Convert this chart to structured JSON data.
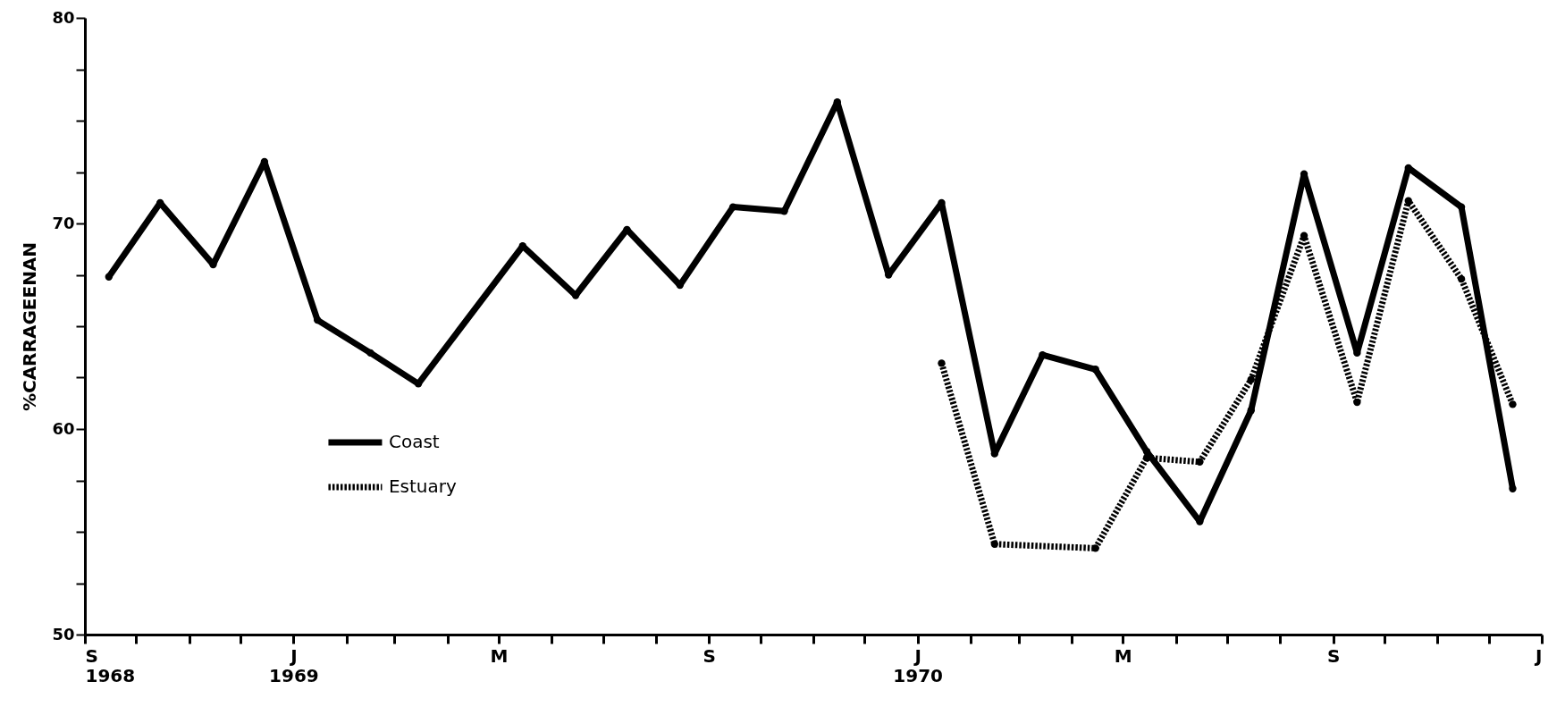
{
  "chart_data": {
    "type": "line",
    "ylabel": "%CARRAGEENAN",
    "series": [
      {
        "name": "Coast",
        "color": "#000000",
        "line_style": "solid",
        "x": [
          "1968-09-15",
          "1968-10-15",
          "1968-11-15",
          "1968-12-15",
          "1969-01-15",
          "1969-02-15",
          "1969-03-15",
          "1969-05-15",
          "1969-06-15",
          "1969-07-15",
          "1969-08-15",
          "1969-09-15",
          "1969-10-15",
          "1969-11-15",
          "1969-12-15",
          "1970-01-15",
          "1970-02-15",
          "1970-03-15",
          "1970-04-15",
          "1970-05-15",
          "1970-06-15",
          "1970-07-15",
          "1970-08-15",
          "1970-09-15",
          "1970-10-15",
          "1970-11-15",
          "1970-12-15"
        ],
        "values": [
          67.4,
          71.0,
          68.0,
          73.0,
          65.3,
          63.7,
          62.2,
          68.9,
          66.5,
          69.7,
          67.0,
          70.8,
          70.6,
          75.9,
          67.5,
          71.0,
          58.8,
          63.6,
          62.9,
          58.9,
          55.5,
          60.9,
          72.4,
          63.7,
          72.7,
          70.8,
          57.1
        ]
      },
      {
        "name": "Estuary",
        "color": "#000000",
        "line_style": "dotted",
        "x": [
          "1970-01-15",
          "1970-02-15",
          "1970-04-15",
          "1970-05-15",
          "1970-06-15",
          "1970-07-15",
          "1970-08-15",
          "1970-09-15",
          "1970-10-15",
          "1970-11-15",
          "1970-12-15"
        ],
        "values": [
          63.2,
          54.4,
          54.2,
          58.6,
          58.4,
          62.4,
          69.4,
          61.3,
          71.1,
          67.3,
          61.2
        ]
      }
    ],
    "xlim": [
      "1968-09-01",
      "1971-01-01"
    ],
    "xticks": [
      {
        "value": "1968-09-01",
        "label": "S\n1968"
      },
      {
        "value": "1968-10-01",
        "label": null
      },
      {
        "value": "1968-11-01",
        "label": null
      },
      {
        "value": "1968-12-01",
        "label": null
      },
      {
        "value": "1969-01-01",
        "label": "J\n1969"
      },
      {
        "value": "1969-02-01",
        "label": null
      },
      {
        "value": "1969-03-01",
        "label": null
      },
      {
        "value": "1969-04-01",
        "label": null
      },
      {
        "value": "1969-05-01",
        "label": "M"
      },
      {
        "value": "1969-06-01",
        "label": null
      },
      {
        "value": "1969-07-01",
        "label": null
      },
      {
        "value": "1969-08-01",
        "label": null
      },
      {
        "value": "1969-09-01",
        "label": "S"
      },
      {
        "value": "1969-10-01",
        "label": null
      },
      {
        "value": "1969-11-01",
        "label": null
      },
      {
        "value": "1969-12-01",
        "label": null
      },
      {
        "value": "1970-01-01",
        "label": "J\n1970"
      },
      {
        "value": "1970-02-01",
        "label": null
      },
      {
        "value": "1970-03-01",
        "label": null
      },
      {
        "value": "1970-04-01",
        "label": null
      },
      {
        "value": "1970-05-01",
        "label": "M"
      },
      {
        "value": "1970-06-01",
        "label": null
      },
      {
        "value": "1970-07-01",
        "label": null
      },
      {
        "value": "1970-08-01",
        "label": null
      },
      {
        "value": "1970-09-01",
        "label": "S"
      },
      {
        "value": "1970-10-01",
        "label": null
      },
      {
        "value": "1970-11-01",
        "label": null
      },
      {
        "value": "1970-12-01",
        "label": null
      },
      {
        "value": "1971-01-01",
        "label": "J"
      }
    ],
    "ylim": [
      50,
      80
    ],
    "yticks": [
      50,
      {
        "value": 52.5,
        "label": null
      },
      {
        "value": 55,
        "label": null
      },
      {
        "value": 57.5,
        "label": null
      },
      60,
      {
        "value": 62.5,
        "label": null
      },
      {
        "value": 65,
        "label": null
      },
      {
        "value": 67.5,
        "label": null
      },
      70,
      {
        "value": 72.5,
        "label": null
      },
      {
        "value": 75,
        "label": null
      },
      {
        "value": 77.5,
        "label": null
      },
      80
    ],
    "grid": false,
    "legend": "left",
    "marker": "circle"
  }
}
